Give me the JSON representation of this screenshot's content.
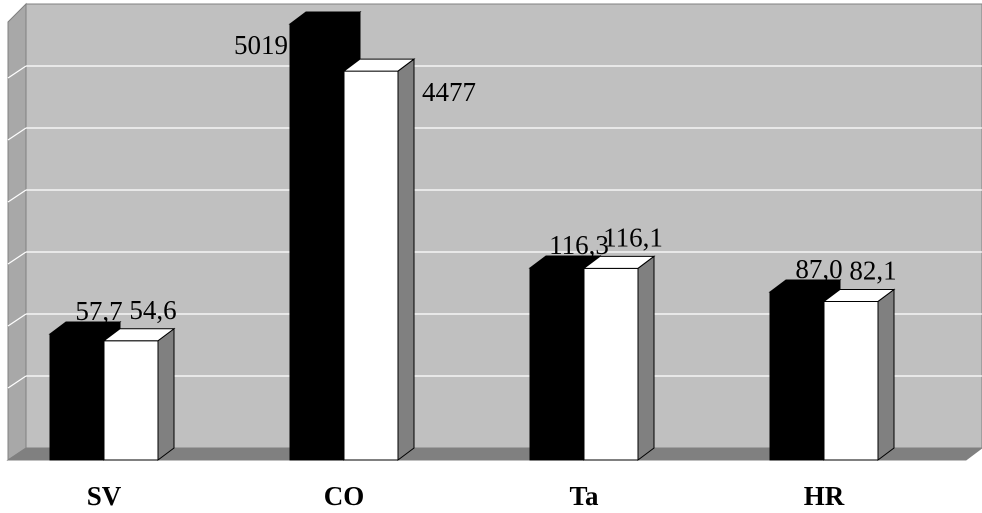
{
  "chart_data": {
    "type": "bar",
    "categories": [
      "SV",
      "CO",
      "Ta",
      "HR"
    ],
    "series": [
      {
        "values": [
          57.7,
          5019,
          116.3,
          87.0
        ],
        "labels": [
          "57,7",
          "5019",
          "116,3",
          "87,0"
        ],
        "color": "#000000"
      },
      {
        "values": [
          54.6,
          4477,
          116.1,
          82.1
        ],
        "labels": [
          "54,6",
          "4477",
          "116,1",
          "82,1"
        ],
        "color": "#ffffff"
      }
    ],
    "grid": true,
    "legend": "none",
    "plot_background": "#c0c0c0",
    "title": "",
    "xlabel": "",
    "ylabel": ""
  }
}
